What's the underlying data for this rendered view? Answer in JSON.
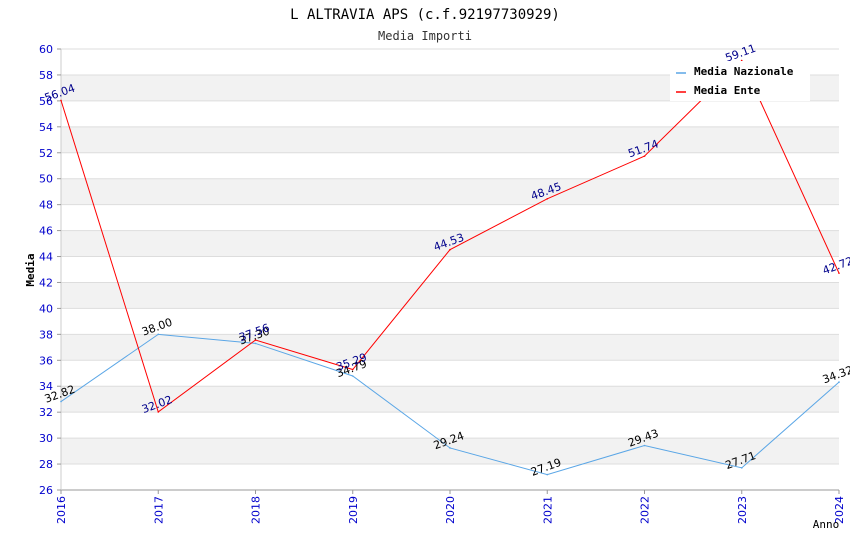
{
  "chart_data": {
    "type": "line",
    "title": "L ALTRAVIA APS (c.f.92197730929)",
    "subtitle": "Media Importi",
    "xlabel": "Anno",
    "ylabel": "Media",
    "ylim": [
      26,
      60
    ],
    "y_ticks": [
      "26",
      "28",
      "30",
      "32",
      "34",
      "36",
      "38",
      "40",
      "42",
      "44",
      "46",
      "48",
      "50",
      "52",
      "54",
      "56",
      "58",
      "60"
    ],
    "categories": [
      "2016",
      "2017",
      "2018",
      "2019",
      "2020",
      "2021",
      "2022",
      "2023",
      "2024"
    ],
    "series": [
      {
        "name": "Media Nazionale",
        "color": "#5aa6e6",
        "label_color": "#000000",
        "values": [
          32.82,
          38.0,
          37.3,
          34.79,
          29.24,
          27.19,
          29.43,
          27.71,
          34.32
        ],
        "labels": [
          "32.82",
          "38.00",
          "37.30",
          "34.79",
          "29.24",
          "27.19",
          "29.43",
          "27.71",
          "34.32"
        ]
      },
      {
        "name": "Media Ente",
        "color": "#ff0000",
        "label_color": "#00008b",
        "values": [
          56.04,
          32.02,
          37.56,
          35.29,
          44.53,
          48.45,
          51.74,
          59.11,
          42.72
        ],
        "labels": [
          "56.04",
          "32.02",
          "37.56",
          "35.29",
          "44.53",
          "48.45",
          "51.74",
          "59.11",
          "42.72"
        ]
      }
    ],
    "legend": "top-right",
    "grid": true
  },
  "colors": {
    "axis_text": "#0000cc",
    "band": "#f2f2f2",
    "grid": "#dddddd"
  }
}
